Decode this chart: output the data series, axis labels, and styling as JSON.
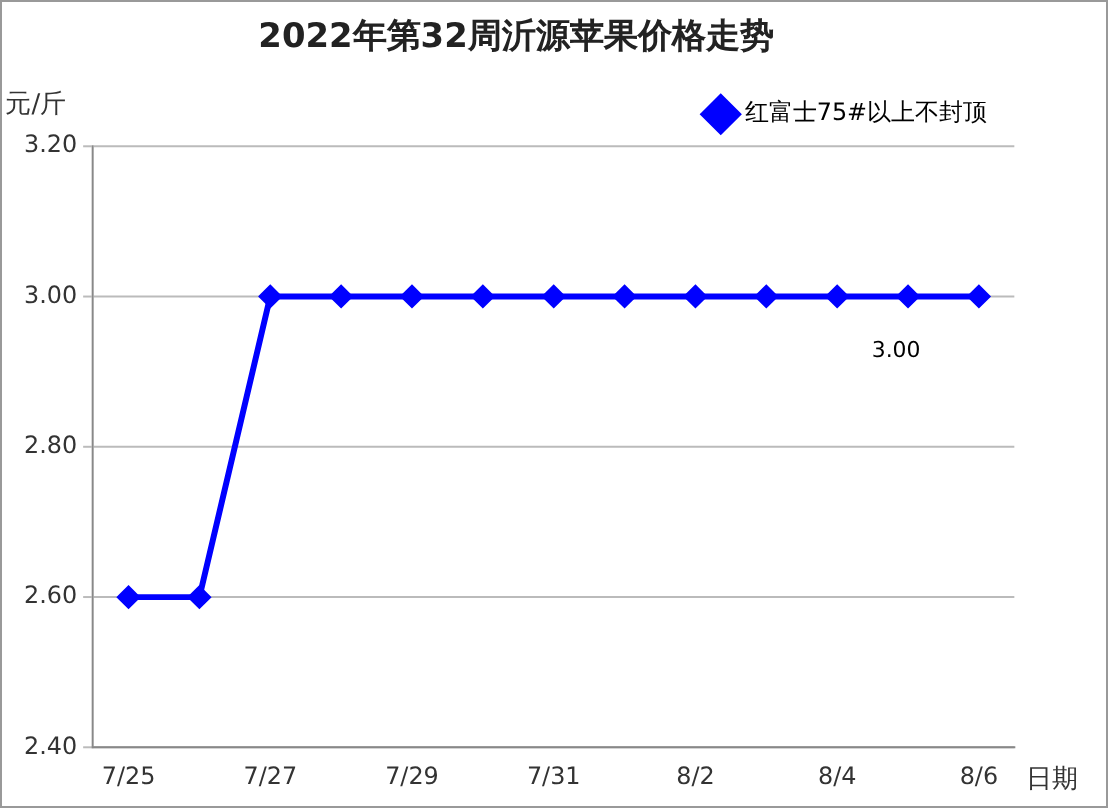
{
  "chart_data": {
    "type": "line",
    "title": "2022年第32周沂源苹果价格走势",
    "ylabel": "元/斤",
    "xlabel": "日期",
    "categories": [
      "7/25",
      null,
      "7/27",
      null,
      "7/29",
      null,
      "7/31",
      null,
      "8/2",
      null,
      "8/4",
      null,
      "8/6"
    ],
    "series": [
      {
        "name": "红富士75#以上不封顶",
        "color": "#0000ff",
        "values": [
          2.6,
          2.6,
          3.0,
          3.0,
          3.0,
          3.0,
          3.0,
          3.0,
          3.0,
          3.0,
          3.0,
          3.0,
          3.0
        ],
        "value_labels": [
          null,
          null,
          null,
          null,
          null,
          null,
          null,
          null,
          null,
          null,
          null,
          "3.00",
          null
        ]
      }
    ],
    "ylim": [
      2.4,
      3.2
    ],
    "yticks": [
      {
        "value": 2.4,
        "label": "2.40"
      },
      {
        "value": 2.6,
        "label": "2.60"
      },
      {
        "value": 2.8,
        "label": "2.80"
      },
      {
        "value": 3.0,
        "label": "3.00"
      },
      {
        "value": 3.2,
        "label": "3.20"
      }
    ],
    "grid": "y",
    "legend": "top right",
    "marker": "diamond",
    "line_style": "solid"
  }
}
